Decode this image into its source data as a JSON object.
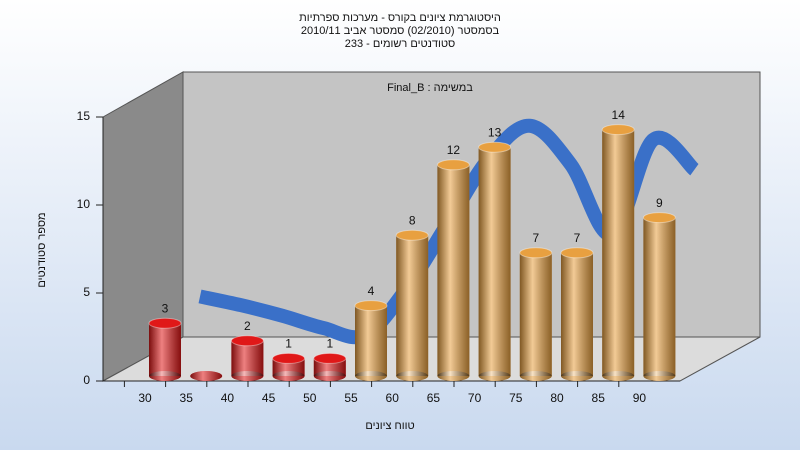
{
  "chart_data": {
    "type": "bar3d",
    "title": [
      "היסטוגרמת ציונים בקורס - מערכות ספרתיות",
      "בסמסטר  (02/2010)  סמסטר אביב 2010/11",
      "סטודנטים רשומים - 233"
    ],
    "annotation": "Final_B : במשימה",
    "y_label": "מספר סטודנטים",
    "x_label": "טווח ציונים",
    "categories": [
      "30",
      "35",
      "40",
      "45",
      "50",
      "55",
      "60",
      "65",
      "70",
      "75",
      "80",
      "85",
      "90"
    ],
    "values": [
      3,
      0,
      2,
      1,
      1,
      4,
      8,
      12,
      13,
      7,
      7,
      14,
      9
    ],
    "colors": [
      "#e01818",
      "#e01818",
      "#e01818",
      "#e01818",
      "#e01818",
      "#e8a040",
      "#e8a040",
      "#e8a040",
      "#e8a040",
      "#e8a040",
      "#e8a040",
      "#e8a040",
      "#e8a040"
    ],
    "line_values": [
      3.1,
      2.6,
      2.0,
      1.3,
      0.9,
      3.5,
      7.2,
      10.9,
      12.8,
      10.6,
      6.6,
      12,
      10.3
    ],
    "line_color": "#3a70c8",
    "ylim": [
      0,
      15
    ],
    "yticks": [
      0,
      5,
      10,
      15
    ]
  }
}
